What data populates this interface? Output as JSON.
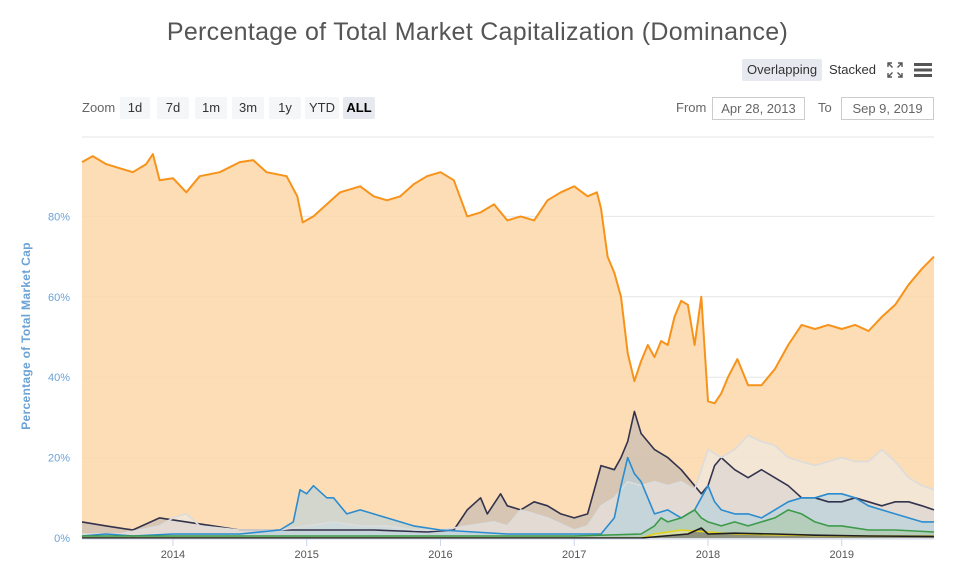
{
  "title": "Percentage of Total Market Capitalization (Dominance)",
  "toolbar": {
    "overlapping_label": "Overlapping",
    "stacked_label": "Stacked",
    "fullscreen_icon": "fullscreen-icon",
    "menu_icon": "hamburger-menu-icon"
  },
  "zoom": {
    "label": "Zoom",
    "buttons": [
      "1d",
      "7d",
      "1m",
      "3m",
      "1y",
      "YTD",
      "ALL"
    ],
    "active": "ALL"
  },
  "range": {
    "from_label": "From",
    "from_value": "Apr 28, 2013",
    "to_label": "To",
    "to_value": "Sep 9, 2019"
  },
  "chart_data": {
    "type": "area",
    "title": "Percentage of Total Market Capitalization (Dominance)",
    "ylabel": "Percentage of Total Market Cap",
    "xlabel": "",
    "xlim": [
      2013.32,
      2019.69
    ],
    "ylim": [
      0,
      100
    ],
    "yticks": [
      "0%",
      "20%",
      "40%",
      "60%",
      "80%"
    ],
    "ytick_values": [
      0,
      20,
      40,
      60,
      80
    ],
    "xticks": [
      "2014",
      "2015",
      "2016",
      "2017",
      "2018",
      "2019"
    ],
    "xtick_values": [
      2014,
      2015,
      2016,
      2017,
      2018,
      2019
    ],
    "grid": true,
    "series": [
      {
        "color": "#f7931a",
        "fill": "#fbd7a8",
        "points": [
          [
            2013.32,
            93.5
          ],
          [
            2013.4,
            95
          ],
          [
            2013.5,
            93
          ],
          [
            2013.6,
            92
          ],
          [
            2013.7,
            91
          ],
          [
            2013.8,
            93
          ],
          [
            2013.85,
            95.5
          ],
          [
            2013.9,
            89
          ],
          [
            2014.0,
            89.5
          ],
          [
            2014.1,
            86
          ],
          [
            2014.2,
            90
          ],
          [
            2014.35,
            91
          ],
          [
            2014.5,
            93.5
          ],
          [
            2014.6,
            94
          ],
          [
            2014.7,
            91
          ],
          [
            2014.85,
            90
          ],
          [
            2014.93,
            85
          ],
          [
            2014.97,
            78.5
          ],
          [
            2015.05,
            80
          ],
          [
            2015.15,
            83
          ],
          [
            2015.25,
            86
          ],
          [
            2015.4,
            87.5
          ],
          [
            2015.5,
            85
          ],
          [
            2015.6,
            84
          ],
          [
            2015.7,
            85
          ],
          [
            2015.8,
            88
          ],
          [
            2015.9,
            90
          ],
          [
            2016.0,
            91
          ],
          [
            2016.1,
            89
          ],
          [
            2016.2,
            80
          ],
          [
            2016.3,
            81
          ],
          [
            2016.4,
            83
          ],
          [
            2016.5,
            79
          ],
          [
            2016.6,
            80
          ],
          [
            2016.7,
            79
          ],
          [
            2016.8,
            84
          ],
          [
            2016.9,
            86
          ],
          [
            2017.0,
            87.5
          ],
          [
            2017.1,
            85
          ],
          [
            2017.17,
            86
          ],
          [
            2017.2,
            82
          ],
          [
            2017.25,
            70
          ],
          [
            2017.3,
            66
          ],
          [
            2017.35,
            60
          ],
          [
            2017.4,
            46
          ],
          [
            2017.45,
            39
          ],
          [
            2017.5,
            44
          ],
          [
            2017.55,
            48
          ],
          [
            2017.6,
            45
          ],
          [
            2017.65,
            49
          ],
          [
            2017.7,
            48
          ],
          [
            2017.75,
            55
          ],
          [
            2017.8,
            59
          ],
          [
            2017.85,
            58
          ],
          [
            2017.9,
            48
          ],
          [
            2017.95,
            60
          ],
          [
            2018.0,
            34
          ],
          [
            2018.05,
            33.5
          ],
          [
            2018.1,
            36
          ],
          [
            2018.15,
            40
          ],
          [
            2018.22,
            44.5
          ],
          [
            2018.3,
            38
          ],
          [
            2018.4,
            38
          ],
          [
            2018.5,
            42
          ],
          [
            2018.6,
            48
          ],
          [
            2018.7,
            53
          ],
          [
            2018.8,
            52
          ],
          [
            2018.9,
            53
          ],
          [
            2019.0,
            52
          ],
          [
            2019.1,
            53
          ],
          [
            2019.2,
            51.5
          ],
          [
            2019.3,
            55
          ],
          [
            2019.4,
            58
          ],
          [
            2019.5,
            63
          ],
          [
            2019.6,
            67
          ],
          [
            2019.69,
            70
          ]
        ]
      },
      {
        "color": "#33334d",
        "fill": "#b9b3b3",
        "points": [
          [
            2013.32,
            4
          ],
          [
            2013.5,
            3
          ],
          [
            2013.7,
            2
          ],
          [
            2013.9,
            5
          ],
          [
            2014.1,
            4
          ],
          [
            2014.3,
            3
          ],
          [
            2014.5,
            2
          ],
          [
            2014.7,
            2
          ],
          [
            2015.0,
            2
          ],
          [
            2015.5,
            2
          ],
          [
            2015.9,
            1.5
          ],
          [
            2016.1,
            2
          ],
          [
            2016.2,
            7
          ],
          [
            2016.3,
            10
          ],
          [
            2016.35,
            6
          ],
          [
            2016.45,
            11
          ],
          [
            2016.5,
            8
          ],
          [
            2016.6,
            7
          ],
          [
            2016.7,
            9
          ],
          [
            2016.8,
            8
          ],
          [
            2016.9,
            6
          ],
          [
            2017.0,
            5
          ],
          [
            2017.1,
            6
          ],
          [
            2017.2,
            18
          ],
          [
            2017.3,
            17
          ],
          [
            2017.35,
            20
          ],
          [
            2017.4,
            24
          ],
          [
            2017.45,
            31.5
          ],
          [
            2017.5,
            26
          ],
          [
            2017.6,
            22
          ],
          [
            2017.7,
            20
          ],
          [
            2017.8,
            17
          ],
          [
            2017.9,
            13
          ],
          [
            2017.95,
            11
          ],
          [
            2018.0,
            13
          ],
          [
            2018.05,
            18
          ],
          [
            2018.1,
            20
          ],
          [
            2018.2,
            17
          ],
          [
            2018.3,
            15
          ],
          [
            2018.4,
            17
          ],
          [
            2018.5,
            15
          ],
          [
            2018.6,
            13
          ],
          [
            2018.7,
            10
          ],
          [
            2018.8,
            10
          ],
          [
            2018.9,
            9
          ],
          [
            2019.0,
            9
          ],
          [
            2019.1,
            10
          ],
          [
            2019.2,
            9
          ],
          [
            2019.3,
            8
          ],
          [
            2019.4,
            9
          ],
          [
            2019.5,
            9
          ],
          [
            2019.6,
            8
          ],
          [
            2019.69,
            7
          ]
        ]
      },
      {
        "color": "#dcdcdc",
        "fill": "#ececec",
        "points": [
          [
            2013.32,
            1
          ],
          [
            2013.6,
            1
          ],
          [
            2013.9,
            3
          ],
          [
            2014.0,
            5
          ],
          [
            2014.1,
            6
          ],
          [
            2014.2,
            3
          ],
          [
            2014.5,
            2
          ],
          [
            2014.8,
            2
          ],
          [
            2015.0,
            3
          ],
          [
            2015.2,
            4
          ],
          [
            2015.4,
            3
          ],
          [
            2015.6,
            3
          ],
          [
            2015.8,
            2
          ],
          [
            2016.0,
            2
          ],
          [
            2016.2,
            3
          ],
          [
            2016.4,
            4
          ],
          [
            2016.5,
            3
          ],
          [
            2016.6,
            7
          ],
          [
            2016.7,
            6
          ],
          [
            2016.8,
            5
          ],
          [
            2017.0,
            2
          ],
          [
            2017.1,
            3
          ],
          [
            2017.2,
            8
          ],
          [
            2017.3,
            10
          ],
          [
            2017.4,
            14
          ],
          [
            2017.5,
            13
          ],
          [
            2017.6,
            14
          ],
          [
            2017.7,
            13
          ],
          [
            2017.8,
            14
          ],
          [
            2017.9,
            12
          ],
          [
            2017.95,
            17
          ],
          [
            2018.0,
            22
          ],
          [
            2018.1,
            20
          ],
          [
            2018.2,
            22
          ],
          [
            2018.3,
            25.5
          ],
          [
            2018.4,
            24
          ],
          [
            2018.5,
            23
          ],
          [
            2018.6,
            20
          ],
          [
            2018.7,
            19
          ],
          [
            2018.8,
            18
          ],
          [
            2018.9,
            19
          ],
          [
            2019.0,
            20
          ],
          [
            2019.1,
            19
          ],
          [
            2019.2,
            19
          ],
          [
            2019.3,
            22
          ],
          [
            2019.4,
            19
          ],
          [
            2019.5,
            15
          ],
          [
            2019.6,
            13
          ],
          [
            2019.69,
            12
          ]
        ]
      },
      {
        "color": "#2b8ccf",
        "fill": "#aecfe0",
        "points": [
          [
            2013.32,
            0.5
          ],
          [
            2013.5,
            1
          ],
          [
            2013.7,
            0.5
          ],
          [
            2014.0,
            1
          ],
          [
            2014.5,
            1
          ],
          [
            2014.8,
            2
          ],
          [
            2014.9,
            4
          ],
          [
            2014.95,
            12
          ],
          [
            2015.0,
            11
          ],
          [
            2015.05,
            13
          ],
          [
            2015.15,
            10
          ],
          [
            2015.2,
            10
          ],
          [
            2015.3,
            6
          ],
          [
            2015.4,
            7
          ],
          [
            2015.5,
            6
          ],
          [
            2015.6,
            5
          ],
          [
            2015.7,
            4
          ],
          [
            2015.8,
            3
          ],
          [
            2016.0,
            2
          ],
          [
            2016.5,
            1
          ],
          [
            2017.0,
            1
          ],
          [
            2017.2,
            1
          ],
          [
            2017.3,
            5
          ],
          [
            2017.35,
            13
          ],
          [
            2017.4,
            20
          ],
          [
            2017.45,
            16
          ],
          [
            2017.5,
            14
          ],
          [
            2017.6,
            6
          ],
          [
            2017.7,
            7
          ],
          [
            2017.8,
            5
          ],
          [
            2017.9,
            7
          ],
          [
            2018.0,
            13
          ],
          [
            2018.05,
            9
          ],
          [
            2018.1,
            7
          ],
          [
            2018.2,
            6
          ],
          [
            2018.3,
            6
          ],
          [
            2018.4,
            5
          ],
          [
            2018.5,
            7
          ],
          [
            2018.6,
            9
          ],
          [
            2018.7,
            10
          ],
          [
            2018.8,
            10
          ],
          [
            2018.9,
            11
          ],
          [
            2019.0,
            11
          ],
          [
            2019.1,
            10
          ],
          [
            2019.2,
            8
          ],
          [
            2019.3,
            7
          ],
          [
            2019.4,
            6
          ],
          [
            2019.5,
            5
          ],
          [
            2019.6,
            4
          ],
          [
            2019.69,
            4
          ]
        ]
      },
      {
        "color": "#3d9a4a",
        "fill": "#a8c9a3",
        "points": [
          [
            2013.32,
            0.5
          ],
          [
            2015.0,
            0.5
          ],
          [
            2017.0,
            0.5
          ],
          [
            2017.5,
            1
          ],
          [
            2017.6,
            3
          ],
          [
            2017.65,
            5
          ],
          [
            2017.7,
            4
          ],
          [
            2017.8,
            5
          ],
          [
            2017.9,
            7
          ],
          [
            2017.95,
            5
          ],
          [
            2018.0,
            4
          ],
          [
            2018.1,
            3
          ],
          [
            2018.2,
            4
          ],
          [
            2018.3,
            3
          ],
          [
            2018.4,
            4
          ],
          [
            2018.5,
            5
          ],
          [
            2018.6,
            7
          ],
          [
            2018.7,
            6
          ],
          [
            2018.8,
            4
          ],
          [
            2018.9,
            3
          ],
          [
            2019.0,
            3
          ],
          [
            2019.2,
            2
          ],
          [
            2019.4,
            2
          ],
          [
            2019.69,
            1.5
          ]
        ]
      },
      {
        "color": "#e3d21a",
        "fill": "#f0e6a0",
        "points": [
          [
            2013.32,
            0
          ],
          [
            2017.5,
            0
          ],
          [
            2017.6,
            1
          ],
          [
            2017.8,
            2
          ],
          [
            2018.0,
            1.5
          ],
          [
            2018.2,
            1
          ],
          [
            2018.5,
            0.8
          ],
          [
            2018.8,
            0.6
          ],
          [
            2019.0,
            0.5
          ],
          [
            2019.69,
            0.5
          ]
        ]
      },
      {
        "color": "#1f1f1f",
        "fill": "#555555",
        "points": [
          [
            2013.32,
            0
          ],
          [
            2017.5,
            0
          ],
          [
            2017.85,
            1
          ],
          [
            2017.95,
            2.5
          ],
          [
            2018.0,
            1
          ],
          [
            2018.2,
            1.2
          ],
          [
            2018.5,
            1
          ],
          [
            2018.8,
            0.7
          ],
          [
            2019.2,
            0.5
          ],
          [
            2019.69,
            0.4
          ]
        ]
      }
    ]
  }
}
